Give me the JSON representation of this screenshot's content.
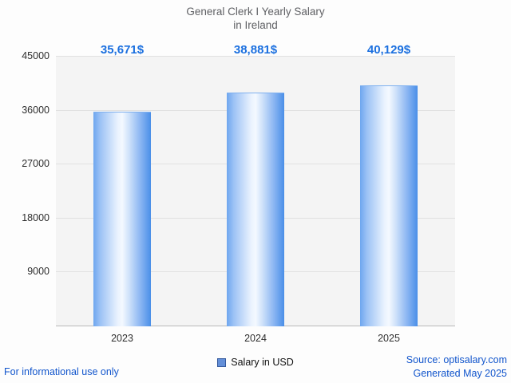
{
  "title": {
    "line1": "General Clerk I Yearly Salary",
    "line2": "in Ireland"
  },
  "chart_data": {
    "type": "bar",
    "title": "General Clerk I Yearly Salary in Ireland",
    "categories": [
      "2023",
      "2024",
      "2025"
    ],
    "values": [
      35671,
      38881,
      40129
    ],
    "value_labels": [
      "35,671$",
      "38,881$",
      "40,129$"
    ],
    "xlabel": "",
    "ylabel": "",
    "ylim": [
      0,
      45000
    ],
    "yticks": [
      45000,
      36000,
      27000,
      18000,
      9000
    ],
    "grid": true,
    "legend_entries": [
      "Salary in USD"
    ],
    "legend_position": "bottom",
    "bar_color": "#4a8fe8",
    "value_label_color": "#1a6fdf"
  },
  "legend": {
    "label": "Salary in USD"
  },
  "footer": {
    "disclaimer": "For informational use only",
    "source": "Source: optisalary.com",
    "generated": "Generated May 2025"
  }
}
